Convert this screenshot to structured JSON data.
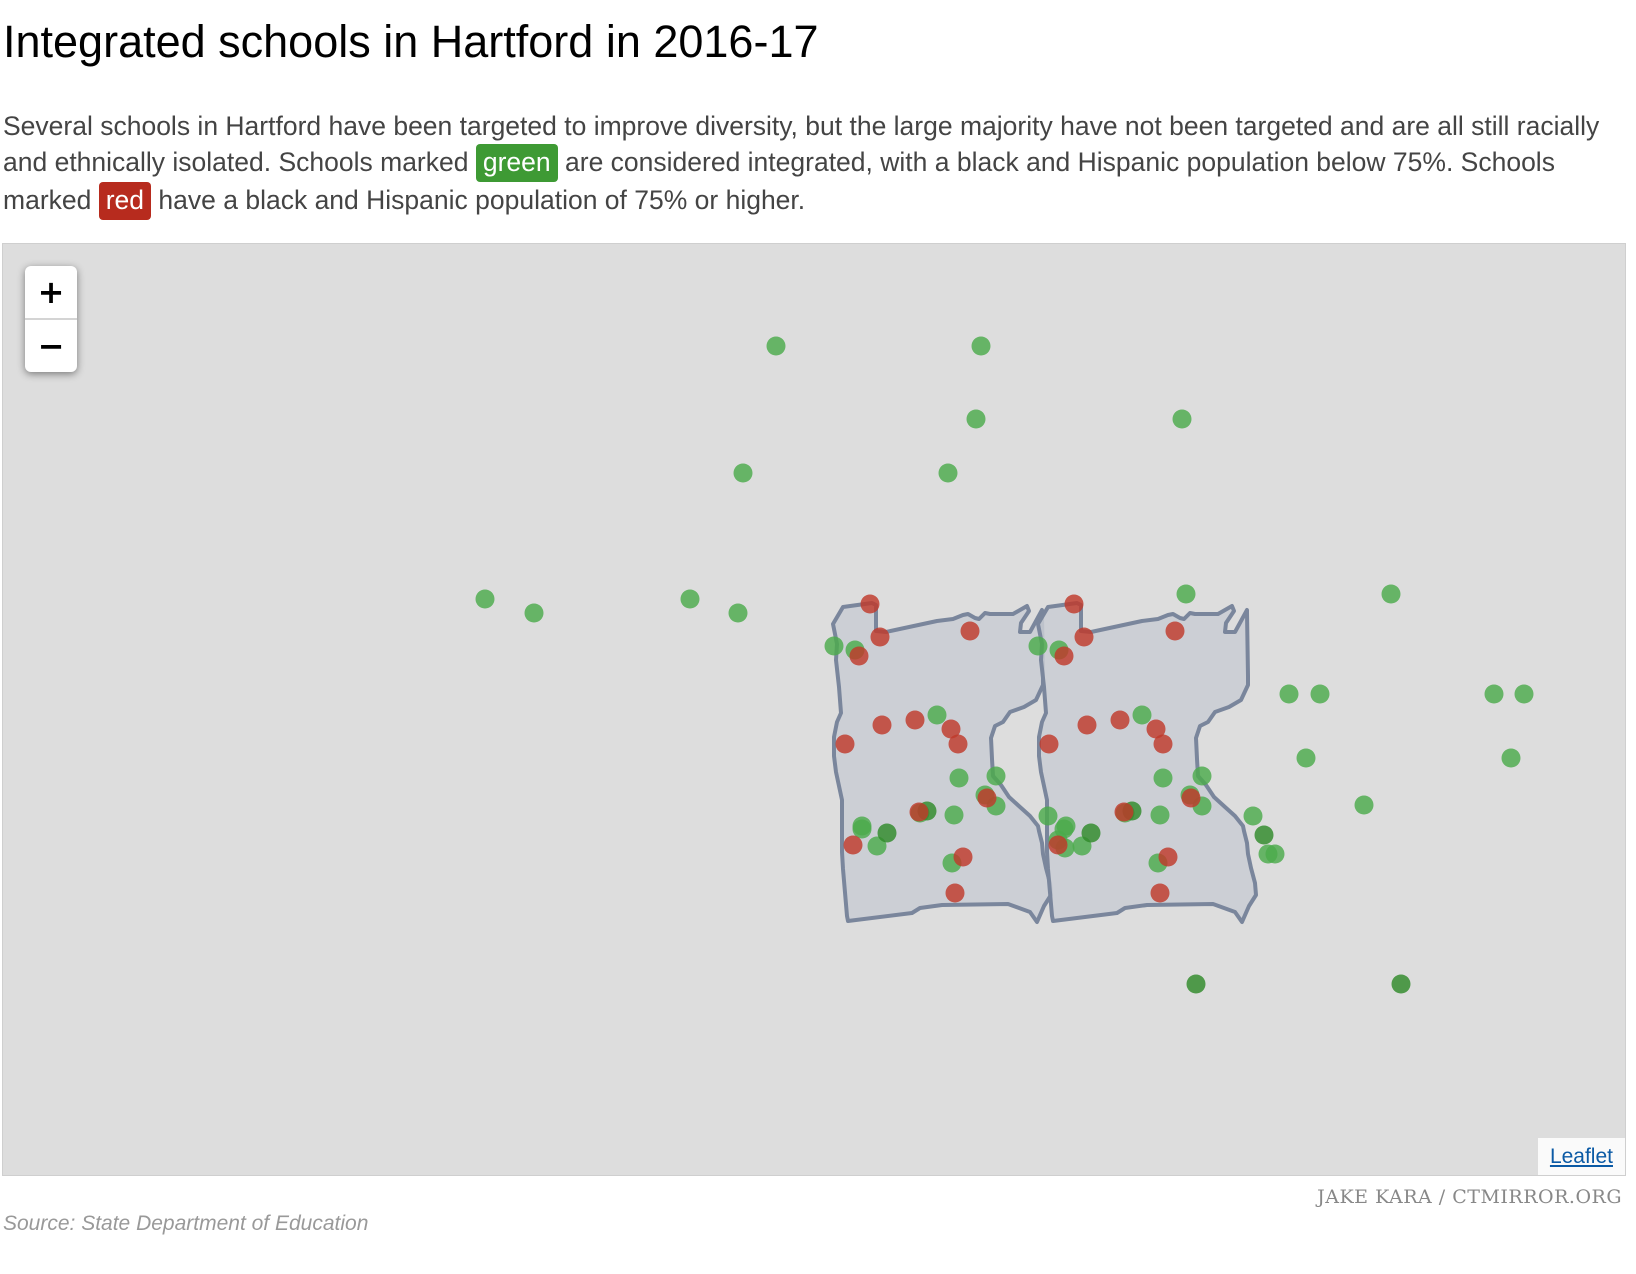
{
  "title": "Integrated schools in Hartford in 2016-17",
  "description": {
    "part1": "Several schools in Hartford have been targeted to improve diversity, but the large majority have not been targeted and are all still racially and ethnically isolated. Schools marked ",
    "green_label": "green",
    "part2": " are considered integrated, with a black and Hispanic population below 75%. Schools marked ",
    "red_label": "red",
    "part3": " have a black and Hispanic population of 75% or higher."
  },
  "map": {
    "zoom_in_label": "+",
    "zoom_out_label": "−",
    "attribution_label": "Leaflet",
    "colors": {
      "background": "#dddddd",
      "polygon_fill": "#c9cdd4",
      "polygon_stroke": "#7a869c",
      "integrated": "#4cab4c",
      "isolated": "#c0392b",
      "integrated_dark": "#2f8a2a"
    }
  },
  "credit": "JAKE KARA / CTMIRROR.ORG",
  "source": "Source: State Department of Education"
}
